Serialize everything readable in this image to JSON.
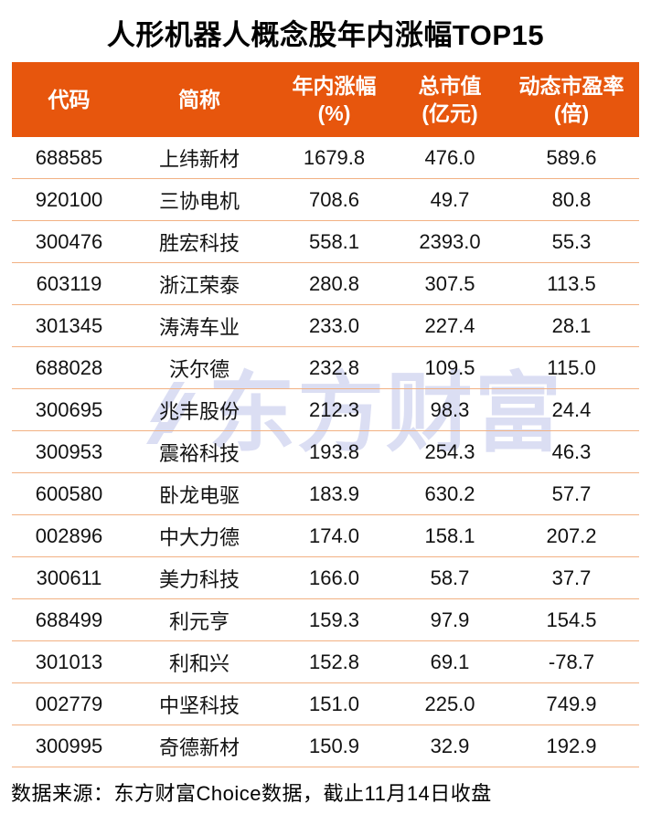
{
  "title": "人形机器人概念股年内涨幅TOP15",
  "chart_data": {
    "type": "table",
    "title": "人形机器人概念股年内涨幅TOP15",
    "columns": [
      {
        "label": "代码",
        "sub": ""
      },
      {
        "label": "简称",
        "sub": ""
      },
      {
        "label": "年内涨幅",
        "sub": "(%)"
      },
      {
        "label": "总市值",
        "sub": "(亿元)"
      },
      {
        "label": "动态市盈率",
        "sub": "(倍)"
      }
    ],
    "rows": [
      [
        "688585",
        "上纬新材",
        "1679.8",
        "476.0",
        "589.6"
      ],
      [
        "920100",
        "三协电机",
        "708.6",
        "49.7",
        "80.8"
      ],
      [
        "300476",
        "胜宏科技",
        "558.1",
        "2393.0",
        "55.3"
      ],
      [
        "603119",
        "浙江荣泰",
        "280.8",
        "307.5",
        "113.5"
      ],
      [
        "301345",
        "涛涛车业",
        "233.0",
        "227.4",
        "28.1"
      ],
      [
        "688028",
        "沃尔德",
        "232.8",
        "109.5",
        "115.0"
      ],
      [
        "300695",
        "兆丰股份",
        "212.3",
        "98.3",
        "24.4"
      ],
      [
        "300953",
        "震裕科技",
        "193.8",
        "254.3",
        "46.3"
      ],
      [
        "600580",
        "卧龙电驱",
        "183.9",
        "630.2",
        "57.7"
      ],
      [
        "002896",
        "中大力德",
        "174.0",
        "158.1",
        "207.2"
      ],
      [
        "300611",
        "美力科技",
        "166.0",
        "58.7",
        "37.7"
      ],
      [
        "688499",
        "利元亨",
        "159.3",
        "97.9",
        "154.5"
      ],
      [
        "301013",
        "利和兴",
        "152.8",
        "69.1",
        "-78.7"
      ],
      [
        "002779",
        "中坚科技",
        "151.0",
        "225.0",
        "749.9"
      ],
      [
        "300995",
        "奇德新材",
        "150.9",
        "32.9",
        "192.9"
      ]
    ]
  },
  "watermark": {
    "text": "东方财富"
  },
  "footer": {
    "text": "数据来源：东方财富Choice数据，截止11月14日收盘"
  },
  "colors": {
    "header_bg": "#e7560d",
    "row_divider": "#f2b183",
    "watermark": "#dbdef3",
    "title_text": "#000000",
    "header_text": "#ffffff"
  }
}
